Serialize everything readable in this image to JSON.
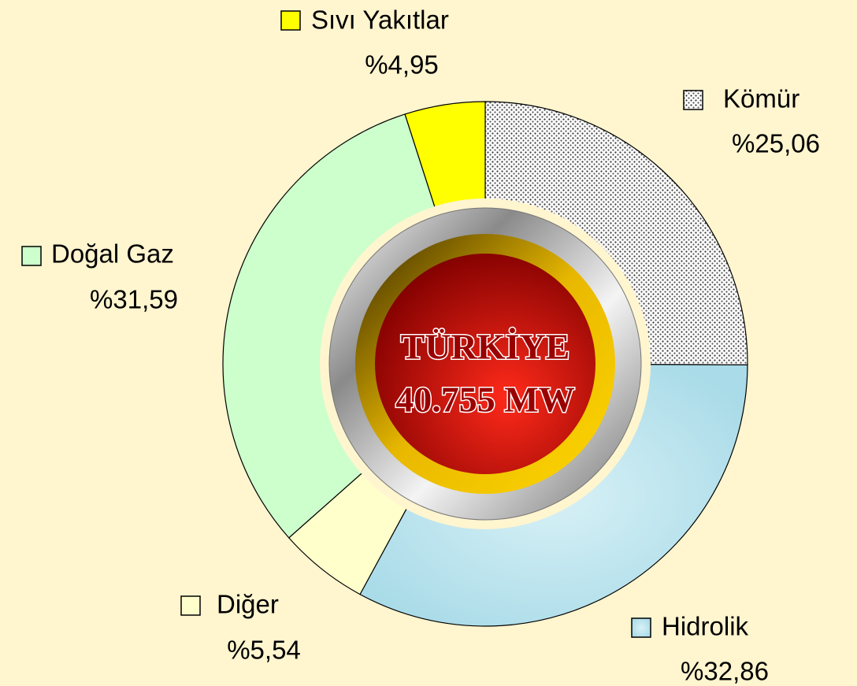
{
  "chart_data": {
    "type": "pie",
    "categories": [
      "Kömür",
      "Hidrolik",
      "Diğer",
      "Doğal Gaz",
      "Sıvı Yakıtlar"
    ],
    "values": [
      25.06,
      32.86,
      5.54,
      31.59,
      4.95
    ],
    "value_labels": [
      "%25,06",
      "%32,86",
      "%5,54",
      "%31,59",
      "%4,95"
    ],
    "colors": [
      "#b0b0b0",
      "#b7e3ee",
      "#ffffcc",
      "#ccffcc",
      "#ffff00"
    ],
    "annotations": [
      "TÜRKİYE",
      "40.755 MW"
    ]
  }
}
